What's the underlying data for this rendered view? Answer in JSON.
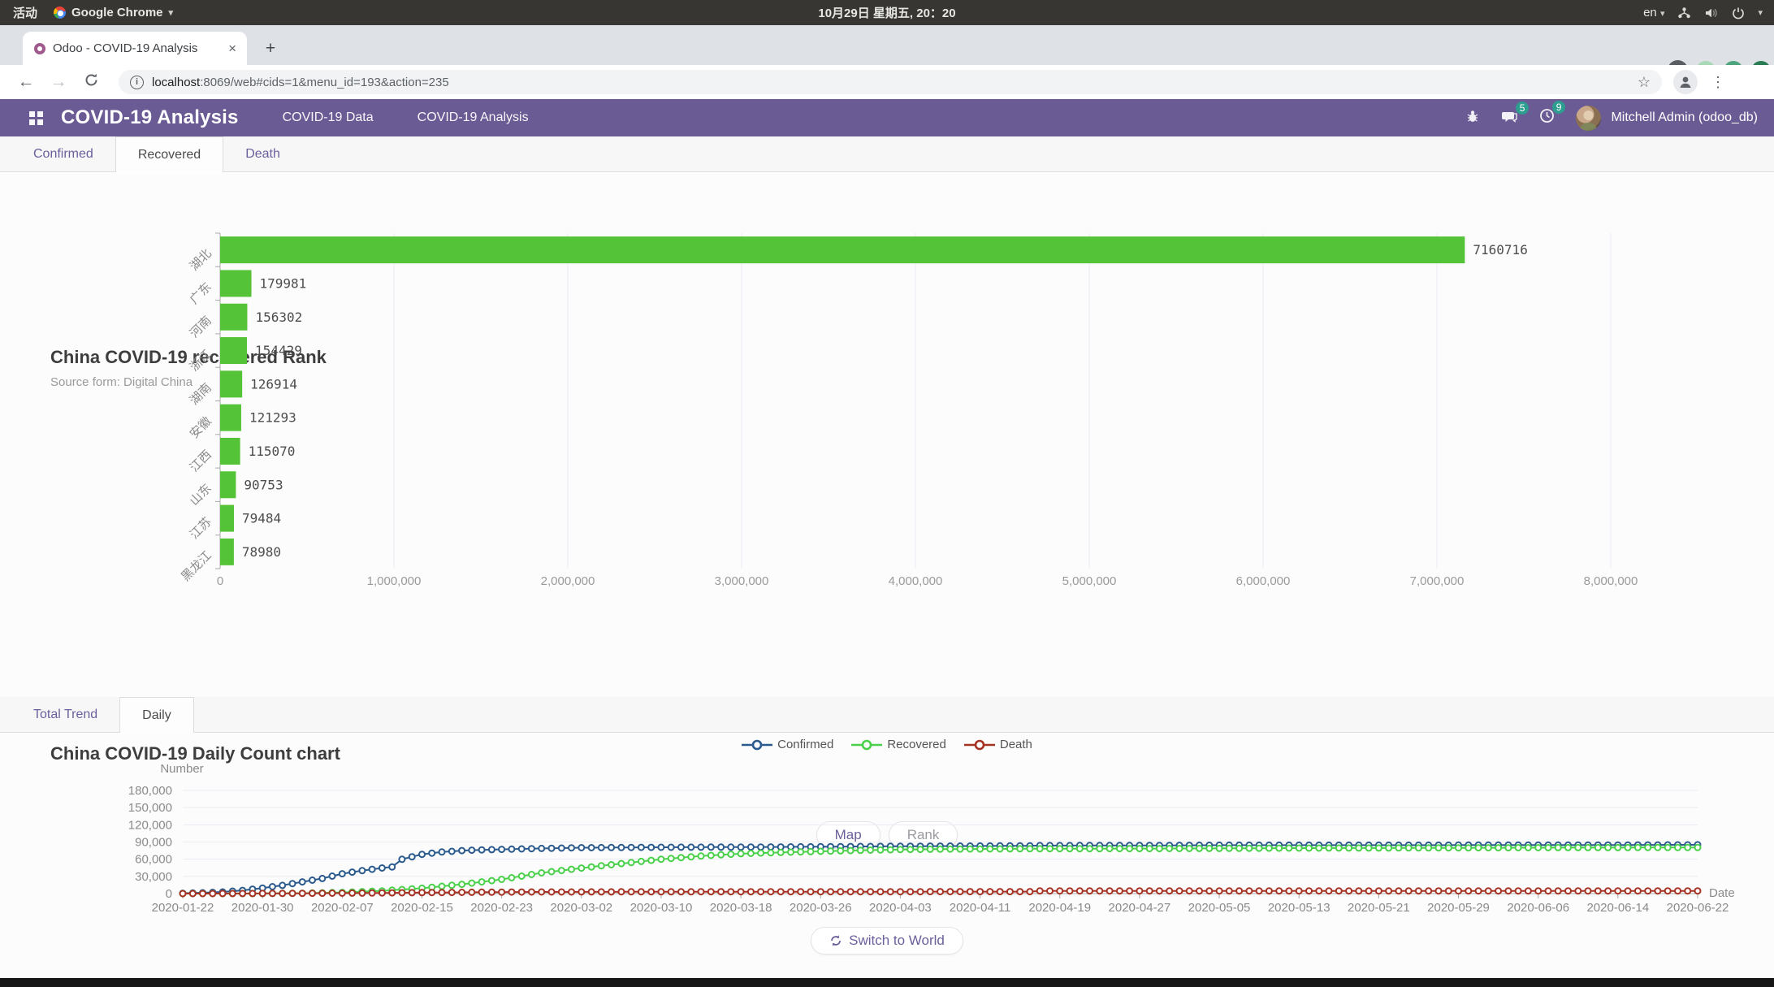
{
  "desktop": {
    "activities_label": "活动",
    "app_menu_label": "Google Chrome",
    "clock": "10月29日 星期五, 20：20",
    "language": "en"
  },
  "browser": {
    "tab_title": "Odoo - COVID-19 Analysis",
    "new_tab_label": "+",
    "close_label": "×",
    "url_host": "localhost",
    "url_rest": ":8069/web#cids=1&menu_id=193&action=235"
  },
  "odoo": {
    "app_title": "COVID-19 Analysis",
    "menu_items": [
      "COVID-19 Data",
      "COVID-19 Analysis"
    ],
    "messages_badge": "5",
    "activities_badge": "9",
    "user_name": "Mitchell Admin (odoo_db)"
  },
  "rank": {
    "tabs": [
      {
        "label": "Confirmed",
        "active": false
      },
      {
        "label": "Recovered",
        "active": true
      },
      {
        "label": "Death",
        "active": false
      }
    ],
    "title": "China COVID-19 recovered Rank",
    "subtitle": "Source form: Digital China",
    "map_label": "Map",
    "rank_label": "Rank"
  },
  "trend": {
    "tabs": [
      {
        "label": "Total Trend",
        "active": false
      },
      {
        "label": "Daily",
        "active": true
      }
    ],
    "title": "China COVID-19 Daily Count chart",
    "switch_label": "Switch to World"
  },
  "chart_data": [
    {
      "type": "bar",
      "orientation": "horizontal",
      "title": "China COVID-19 recovered Rank",
      "subtitle": "Source form: Digital China",
      "categories": [
        "湖北",
        "广东",
        "河南",
        "浙江",
        "湖南",
        "安徽",
        "江西",
        "山东",
        "江苏",
        "黑龙江"
      ],
      "values": [
        7160716,
        179981,
        156302,
        154429,
        126914,
        121293,
        115070,
        90753,
        79484,
        78980
      ],
      "xlim": [
        0,
        8000000
      ],
      "x_ticks": [
        0,
        1000000,
        2000000,
        3000000,
        4000000,
        5000000,
        6000000,
        7000000,
        8000000
      ],
      "bar_color": "#55c337",
      "grid": true,
      "value_labels": true
    },
    {
      "type": "line",
      "title": "China COVID-19 Daily Count chart",
      "ylabel": "Number",
      "xlabel": "Date",
      "ylim": [
        0,
        180000
      ],
      "y_ticks": [
        0,
        30000,
        60000,
        90000,
        120000,
        150000,
        180000
      ],
      "x_tick_labels": [
        "2020-01-22",
        "2020-01-30",
        "2020-02-07",
        "2020-02-15",
        "2020-02-23",
        "2020-03-02",
        "2020-03-10",
        "2020-03-18",
        "2020-03-26",
        "2020-04-03",
        "2020-04-11",
        "2020-04-19",
        "2020-04-27",
        "2020-05-05",
        "2020-05-13",
        "2020-05-21",
        "2020-05-29",
        "2020-06-06",
        "2020-06-14",
        "2020-06-22"
      ],
      "tick_interval_days": 8,
      "total_days": 152,
      "legend_position": "top-center",
      "grid": true,
      "marker": "hollow-circle",
      "series": [
        {
          "name": "Confirmed",
          "color": "#2b5a8c",
          "anchors": [
            [
              0,
              571
            ],
            [
              2,
              1459
            ],
            [
              4,
              2877
            ],
            [
              6,
              5509
            ],
            [
              8,
              9692
            ],
            [
              10,
              14380
            ],
            [
              12,
              20438
            ],
            [
              14,
              26302
            ],
            [
              16,
              34546
            ],
            [
              18,
              40171
            ],
            [
              20,
              44653
            ],
            [
              21,
              46472
            ],
            [
              22,
              59804
            ],
            [
              24,
              68500
            ],
            [
              26,
              72528
            ],
            [
              28,
              75002
            ],
            [
              30,
              76288
            ],
            [
              32,
              77150
            ],
            [
              36,
              78824
            ],
            [
              40,
              80026
            ],
            [
              44,
              80409
            ],
            [
              48,
              80778
            ],
            [
              52,
              80981
            ],
            [
              56,
              81116
            ],
            [
              60,
              81394
            ],
            [
              64,
              81782
            ],
            [
              68,
              82160
            ],
            [
              72,
              82526
            ],
            [
              76,
              82802
            ],
            [
              80,
              83014
            ],
            [
              84,
              83305
            ],
            [
              85,
              83403
            ],
            [
              86,
              83760
            ],
            [
              90,
              83853
            ],
            [
              96,
              83938
            ],
            [
              104,
              84406
            ],
            [
              112,
              84458
            ],
            [
              120,
              84507
            ],
            [
              128,
              84547
            ],
            [
              136,
              84630
            ],
            [
              144,
              84743
            ],
            [
              152,
              85119
            ]
          ]
        },
        {
          "name": "Recovered",
          "color": "#4ad04a",
          "anchors": [
            [
              0,
              28
            ],
            [
              4,
              58
            ],
            [
              8,
              171
            ],
            [
              12,
              632
            ],
            [
              16,
              2050
            ],
            [
              20,
              4740
            ],
            [
              24,
              9419
            ],
            [
              28,
              16155
            ],
            [
              32,
              24734
            ],
            [
              36,
              36117
            ],
            [
              40,
              44518
            ],
            [
              44,
              52292
            ],
            [
              48,
              59897
            ],
            [
              52,
              65541
            ],
            [
              56,
              69601
            ],
            [
              60,
              71740
            ],
            [
              64,
              73650
            ],
            [
              68,
              75448
            ],
            [
              72,
              76751
            ],
            [
              76,
              77525
            ],
            [
              80,
              77877
            ],
            [
              84,
              78170
            ],
            [
              88,
              78422
            ],
            [
              96,
              78474
            ],
            [
              104,
              78871
            ],
            [
              112,
              79398
            ],
            [
              120,
              79518
            ],
            [
              128,
              79814
            ],
            [
              136,
              80114
            ],
            [
              144,
              80258
            ],
            [
              152,
              80394
            ]
          ]
        },
        {
          "name": "Death",
          "color": "#a53223",
          "anchors": [
            [
              0,
              17
            ],
            [
              4,
              82
            ],
            [
              8,
              213
            ],
            [
              12,
              426
            ],
            [
              16,
              722
            ],
            [
              20,
              1114
            ],
            [
              24,
              1665
            ],
            [
              28,
              2118
            ],
            [
              32,
              2592
            ],
            [
              36,
              2838
            ],
            [
              40,
              2912
            ],
            [
              44,
              3070
            ],
            [
              48,
              3158
            ],
            [
              52,
              3199
            ],
            [
              56,
              3231
            ],
            [
              64,
              3281
            ],
            [
              72,
              3326
            ],
            [
              80,
              3343
            ],
            [
              85,
              3342
            ],
            [
              86,
              4632
            ],
            [
              96,
              4633
            ],
            [
              120,
              4634
            ],
            [
              152,
              4634
            ]
          ]
        }
      ]
    }
  ]
}
